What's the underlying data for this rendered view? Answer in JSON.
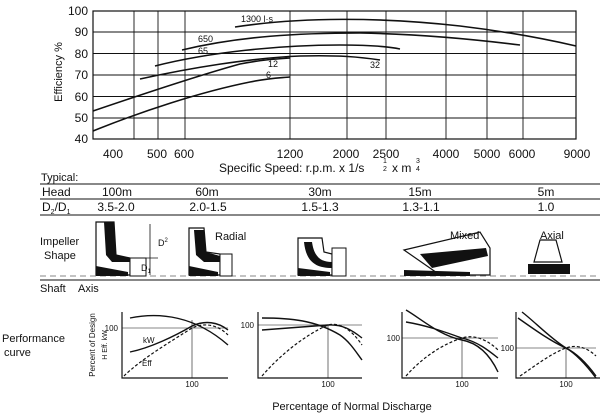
{
  "efficiency_chart": {
    "y_axis_label": "Efficiency %",
    "y_ticks": [
      "100",
      "90",
      "80",
      "70",
      "60",
      "50",
      "40"
    ],
    "x_ticks": [
      "400",
      "500",
      "600",
      "1200",
      "2000",
      "2500",
      "4000",
      "5000",
      "6000",
      "9000"
    ],
    "x_axis_label": "Specific Speed: r.p.m. x 1/s",
    "x_axis_exp_1": "1",
    "x_axis_exp_2": "2",
    "x_axis_unit": "x m",
    "x_axis_exp_3": "3",
    "x_axis_exp_4": "4",
    "curve_labels": [
      "1300 l·s",
      "650",
      "65",
      "12",
      "32",
      "6"
    ]
  },
  "typical_table": {
    "heading": "Typical:",
    "row1_header": "Head",
    "row1_values": [
      "100m",
      "60m",
      "30m",
      "15m",
      "5m"
    ],
    "row2_header_main": "D",
    "row2_header_sub1": "2",
    "row2_header_sep": "/D",
    "row2_header_sub2": "1",
    "row2_values": [
      "3.5-2.0",
      "2.0-1.5",
      "1.5-1.3",
      "1.3-1.1",
      "1.0"
    ]
  },
  "impeller": {
    "label_line1": "Impeller",
    "label_line2": "Shape",
    "type_labels": [
      "Radial",
      "Mixed",
      "Axial"
    ],
    "d2": "D",
    "d2_sub": "2",
    "d1": "D",
    "d1_sub": "1",
    "shaft_label": "Shaft",
    "axis_label": "Axis"
  },
  "performance": {
    "label_line1": "Performance",
    "label_line2": "curve",
    "y_axis_label": "Percent of Design",
    "y_axis_sub": "H   Eff.  kW",
    "tick_100": "100",
    "curve_kw": "kW",
    "curve_eff": "Eff",
    "x_axis_label": "Percentage of Normal Discharge"
  }
}
